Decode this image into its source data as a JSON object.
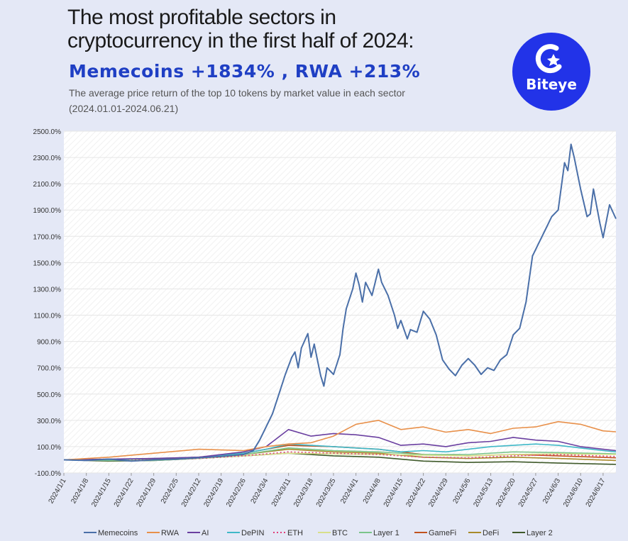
{
  "header": {
    "title_line1": "The most profitable sectors in",
    "title_line2": "cryptocurrency in the first half of 2024:",
    "headline": "Memecoins +1834% , RWA +213%",
    "subtitle_line1": "The average price return of the top 10 tokens by market value in each sector",
    "subtitle_line2": "(2024.01.01-2024.06.21)"
  },
  "logo": {
    "text": "Biteye",
    "color": "#2233e8",
    "icon": "biteye-logo-icon"
  },
  "chart_data": {
    "type": "line",
    "title": "The most profitable sectors in cryptocurrency in the first half of 2024: Memecoins +1834% , RWA +213%",
    "subtitle": "The average price return of the top 10 tokens by market value in each sector (2024.01.01-2024.06.21)",
    "xlabel": "",
    "ylabel": "",
    "ylim": [
      -100,
      2500
    ],
    "yticks": [
      "2500.0%",
      "2300.0%",
      "2100.0%",
      "1900.0%",
      "1700.0%",
      "1500.0%",
      "1300.0%",
      "1100.0%",
      "900.0%",
      "700.0%",
      "500.0%",
      "300.0%",
      "100.0%",
      "-100.0%"
    ],
    "ytick_values": [
      2500,
      2300,
      2100,
      1900,
      1700,
      1500,
      1300,
      1100,
      900,
      700,
      500,
      300,
      100,
      -100
    ],
    "xticks": [
      "2024/1/1",
      "2024/1/8",
      "2024/1/15",
      "2024/1/22",
      "2024/1/29",
      "2024/2/5",
      "2024/2/12",
      "2024/2/19",
      "2024/2/26",
      "2024/3/4",
      "2024/3/11",
      "2024/3/18",
      "2024/3/25",
      "2024/4/1",
      "2024/4/8",
      "2024/4/15",
      "2024/4/22",
      "2024/4/29",
      "2024/5/6",
      "2024/5/13",
      "2024/5/20",
      "2024/5/27",
      "2024/6/3",
      "2024/6/10",
      "2024/6/17"
    ],
    "grid": true,
    "legend_position": "bottom",
    "x_start": "2024-01-01",
    "x_end": "2024-06-21",
    "series": [
      {
        "name": "Memecoins",
        "color": "#4a6fa8",
        "style": "solid",
        "points": [
          [
            "2024-01-01",
            0
          ],
          [
            "2024-01-08",
            -5
          ],
          [
            "2024-01-15",
            5
          ],
          [
            "2024-01-22",
            -10
          ],
          [
            "2024-01-29",
            0
          ],
          [
            "2024-02-05",
            5
          ],
          [
            "2024-02-12",
            15
          ],
          [
            "2024-02-19",
            25
          ],
          [
            "2024-02-26",
            40
          ],
          [
            "2024-02-29",
            70
          ],
          [
            "2024-03-02",
            150
          ],
          [
            "2024-03-04",
            250
          ],
          [
            "2024-03-06",
            350
          ],
          [
            "2024-03-08",
            500
          ],
          [
            "2024-03-10",
            650
          ],
          [
            "2024-03-12",
            780
          ],
          [
            "2024-03-13",
            820
          ],
          [
            "2024-03-14",
            700
          ],
          [
            "2024-03-15",
            850
          ],
          [
            "2024-03-17",
            960
          ],
          [
            "2024-03-18",
            780
          ],
          [
            "2024-03-19",
            880
          ],
          [
            "2024-03-20",
            760
          ],
          [
            "2024-03-21",
            640
          ],
          [
            "2024-03-22",
            560
          ],
          [
            "2024-03-23",
            700
          ],
          [
            "2024-03-25",
            650
          ],
          [
            "2024-03-27",
            800
          ],
          [
            "2024-03-28",
            1000
          ],
          [
            "2024-03-29",
            1150
          ],
          [
            "2024-03-31",
            1300
          ],
          [
            "2024-04-01",
            1420
          ],
          [
            "2024-04-02",
            1330
          ],
          [
            "2024-04-03",
            1200
          ],
          [
            "2024-04-04",
            1350
          ],
          [
            "2024-04-06",
            1250
          ],
          [
            "2024-04-08",
            1450
          ],
          [
            "2024-04-09",
            1350
          ],
          [
            "2024-04-11",
            1250
          ],
          [
            "2024-04-13",
            1100
          ],
          [
            "2024-04-14",
            1000
          ],
          [
            "2024-04-15",
            1060
          ],
          [
            "2024-04-17",
            920
          ],
          [
            "2024-04-18",
            990
          ],
          [
            "2024-04-20",
            970
          ],
          [
            "2024-04-22",
            1130
          ],
          [
            "2024-04-24",
            1070
          ],
          [
            "2024-04-26",
            950
          ],
          [
            "2024-04-28",
            760
          ],
          [
            "2024-04-30",
            690
          ],
          [
            "2024-05-02",
            640
          ],
          [
            "2024-05-04",
            720
          ],
          [
            "2024-05-06",
            770
          ],
          [
            "2024-05-08",
            720
          ],
          [
            "2024-05-10",
            650
          ],
          [
            "2024-05-12",
            700
          ],
          [
            "2024-05-14",
            680
          ],
          [
            "2024-05-16",
            760
          ],
          [
            "2024-05-18",
            800
          ],
          [
            "2024-05-20",
            950
          ],
          [
            "2024-05-22",
            1000
          ],
          [
            "2024-05-24",
            1200
          ],
          [
            "2024-05-26",
            1550
          ],
          [
            "2024-05-28",
            1650
          ],
          [
            "2024-05-30",
            1750
          ],
          [
            "2024-06-01",
            1850
          ],
          [
            "2024-06-03",
            1900
          ],
          [
            "2024-06-05",
            2260
          ],
          [
            "2024-06-06",
            2200
          ],
          [
            "2024-06-07",
            2400
          ],
          [
            "2024-06-08",
            2300
          ],
          [
            "2024-06-10",
            2060
          ],
          [
            "2024-06-12",
            1850
          ],
          [
            "2024-06-13",
            1870
          ],
          [
            "2024-06-14",
            2060
          ],
          [
            "2024-06-16",
            1800
          ],
          [
            "2024-06-17",
            1690
          ],
          [
            "2024-06-19",
            1940
          ],
          [
            "2024-06-21",
            1834
          ]
        ]
      },
      {
        "name": "RWA",
        "color": "#e8904a",
        "style": "solid",
        "points": [
          [
            "2024-01-01",
            0
          ],
          [
            "2024-01-15",
            20
          ],
          [
            "2024-01-29",
            50
          ],
          [
            "2024-02-12",
            80
          ],
          [
            "2024-02-26",
            70
          ],
          [
            "2024-03-04",
            100
          ],
          [
            "2024-03-11",
            120
          ],
          [
            "2024-03-18",
            130
          ],
          [
            "2024-03-25",
            180
          ],
          [
            "2024-04-01",
            270
          ],
          [
            "2024-04-08",
            300
          ],
          [
            "2024-04-15",
            230
          ],
          [
            "2024-04-22",
            250
          ],
          [
            "2024-04-29",
            210
          ],
          [
            "2024-05-06",
            230
          ],
          [
            "2024-05-13",
            200
          ],
          [
            "2024-05-20",
            240
          ],
          [
            "2024-05-27",
            250
          ],
          [
            "2024-06-03",
            290
          ],
          [
            "2024-06-10",
            270
          ],
          [
            "2024-06-17",
            220
          ],
          [
            "2024-06-21",
            213
          ]
        ]
      },
      {
        "name": "AI",
        "color": "#6a3fa0",
        "style": "solid",
        "points": [
          [
            "2024-01-01",
            0
          ],
          [
            "2024-01-15",
            5
          ],
          [
            "2024-01-29",
            10
          ],
          [
            "2024-02-12",
            20
          ],
          [
            "2024-02-26",
            60
          ],
          [
            "2024-03-04",
            100
          ],
          [
            "2024-03-11",
            230
          ],
          [
            "2024-03-18",
            180
          ],
          [
            "2024-03-25",
            200
          ],
          [
            "2024-04-01",
            190
          ],
          [
            "2024-04-08",
            170
          ],
          [
            "2024-04-15",
            110
          ],
          [
            "2024-04-22",
            120
          ],
          [
            "2024-04-29",
            100
          ],
          [
            "2024-05-06",
            130
          ],
          [
            "2024-05-13",
            140
          ],
          [
            "2024-05-20",
            170
          ],
          [
            "2024-05-27",
            150
          ],
          [
            "2024-06-03",
            140
          ],
          [
            "2024-06-10",
            100
          ],
          [
            "2024-06-17",
            80
          ],
          [
            "2024-06-21",
            70
          ]
        ]
      },
      {
        "name": "DePIN",
        "color": "#3fb8c8",
        "style": "solid",
        "points": [
          [
            "2024-01-01",
            0
          ],
          [
            "2024-01-15",
            0
          ],
          [
            "2024-01-29",
            10
          ],
          [
            "2024-02-12",
            20
          ],
          [
            "2024-02-26",
            50
          ],
          [
            "2024-03-04",
            80
          ],
          [
            "2024-03-11",
            120
          ],
          [
            "2024-03-18",
            110
          ],
          [
            "2024-03-25",
            100
          ],
          [
            "2024-04-01",
            90
          ],
          [
            "2024-04-08",
            80
          ],
          [
            "2024-04-15",
            60
          ],
          [
            "2024-04-22",
            70
          ],
          [
            "2024-04-29",
            60
          ],
          [
            "2024-05-06",
            80
          ],
          [
            "2024-05-13",
            100
          ],
          [
            "2024-05-20",
            110
          ],
          [
            "2024-05-27",
            120
          ],
          [
            "2024-06-03",
            110
          ],
          [
            "2024-06-10",
            90
          ],
          [
            "2024-06-17",
            70
          ],
          [
            "2024-06-21",
            60
          ]
        ]
      },
      {
        "name": "ETH",
        "color": "#e0407a",
        "style": "dotted",
        "points": [
          [
            "2024-01-01",
            0
          ],
          [
            "2024-01-15",
            5
          ],
          [
            "2024-01-29",
            0
          ],
          [
            "2024-02-12",
            10
          ],
          [
            "2024-02-26",
            30
          ],
          [
            "2024-03-11",
            60
          ],
          [
            "2024-03-25",
            50
          ],
          [
            "2024-04-08",
            40
          ],
          [
            "2024-04-22",
            20
          ],
          [
            "2024-05-06",
            15
          ],
          [
            "2024-05-20",
            30
          ],
          [
            "2024-06-03",
            40
          ],
          [
            "2024-06-21",
            25
          ]
        ]
      },
      {
        "name": "BTC",
        "color": "#d8e08a",
        "style": "solid",
        "points": [
          [
            "2024-01-01",
            0
          ],
          [
            "2024-01-15",
            0
          ],
          [
            "2024-01-29",
            0
          ],
          [
            "2024-02-12",
            10
          ],
          [
            "2024-02-26",
            30
          ],
          [
            "2024-03-11",
            50
          ],
          [
            "2024-03-25",
            45
          ],
          [
            "2024-04-08",
            40
          ],
          [
            "2024-04-22",
            35
          ],
          [
            "2024-05-06",
            30
          ],
          [
            "2024-05-20",
            40
          ],
          [
            "2024-06-03",
            45
          ],
          [
            "2024-06-21",
            40
          ]
        ]
      },
      {
        "name": "Layer 1",
        "color": "#7ac48a",
        "style": "solid",
        "points": [
          [
            "2024-01-01",
            0
          ],
          [
            "2024-01-15",
            -5
          ],
          [
            "2024-01-29",
            -5
          ],
          [
            "2024-02-12",
            10
          ],
          [
            "2024-02-26",
            40
          ],
          [
            "2024-03-11",
            90
          ],
          [
            "2024-03-25",
            70
          ],
          [
            "2024-04-08",
            60
          ],
          [
            "2024-04-22",
            40
          ],
          [
            "2024-05-06",
            40
          ],
          [
            "2024-05-20",
            60
          ],
          [
            "2024-06-03",
            55
          ],
          [
            "2024-06-21",
            45
          ]
        ]
      },
      {
        "name": "GameFi",
        "color": "#c0521e",
        "style": "solid",
        "points": [
          [
            "2024-01-01",
            0
          ],
          [
            "2024-01-15",
            0
          ],
          [
            "2024-01-29",
            5
          ],
          [
            "2024-02-12",
            20
          ],
          [
            "2024-02-26",
            50
          ],
          [
            "2024-03-11",
            110
          ],
          [
            "2024-03-25",
            100
          ],
          [
            "2024-04-08",
            80
          ],
          [
            "2024-04-22",
            40
          ],
          [
            "2024-05-06",
            30
          ],
          [
            "2024-05-20",
            40
          ],
          [
            "2024-06-03",
            30
          ],
          [
            "2024-06-21",
            15
          ]
        ]
      },
      {
        "name": "DeFi",
        "color": "#a88a2a",
        "style": "solid",
        "points": [
          [
            "2024-01-01",
            0
          ],
          [
            "2024-01-15",
            -5
          ],
          [
            "2024-01-29",
            0
          ],
          [
            "2024-02-12",
            15
          ],
          [
            "2024-02-26",
            40
          ],
          [
            "2024-03-11",
            80
          ],
          [
            "2024-03-25",
            60
          ],
          [
            "2024-04-08",
            50
          ],
          [
            "2024-04-22",
            20
          ],
          [
            "2024-05-06",
            10
          ],
          [
            "2024-05-20",
            20
          ],
          [
            "2024-06-03",
            10
          ],
          [
            "2024-06-21",
            -5
          ]
        ]
      },
      {
        "name": "Layer 2",
        "color": "#3f5a2a",
        "style": "solid",
        "points": [
          [
            "2024-01-01",
            0
          ],
          [
            "2024-01-15",
            -10
          ],
          [
            "2024-01-29",
            -5
          ],
          [
            "2024-02-12",
            10
          ],
          [
            "2024-02-26",
            30
          ],
          [
            "2024-03-11",
            50
          ],
          [
            "2024-03-25",
            30
          ],
          [
            "2024-04-08",
            20
          ],
          [
            "2024-04-22",
            -10
          ],
          [
            "2024-05-06",
            -20
          ],
          [
            "2024-05-20",
            -15
          ],
          [
            "2024-06-03",
            -25
          ],
          [
            "2024-06-21",
            -35
          ]
        ]
      }
    ]
  }
}
